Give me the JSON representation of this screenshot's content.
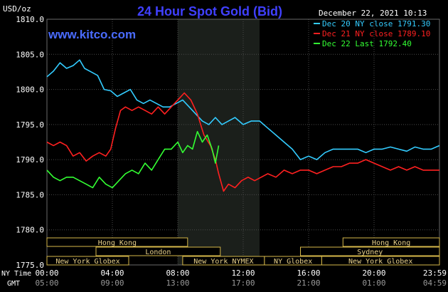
{
  "header": {
    "title": "24 Hour Spot Gold (Bid)",
    "y_unit": "USD/oz",
    "date": "December 22, 2021 10:13",
    "watermark": "www.kitco.com"
  },
  "legend": [
    {
      "label": "Dec 20 NY close 1791.30",
      "color": "#33ccff"
    },
    {
      "label": "Dec 21 NY close 1789.10",
      "color": "#ff2020"
    },
    {
      "label": "Dec 22 Last 1792.40",
      "color": "#33ff33"
    }
  ],
  "x_axis": {
    "row1_label": "NY Time",
    "row2_label": "GMT",
    "ny_ticks": [
      "00:00",
      "04:00",
      "08:00",
      "12:00",
      "16:00",
      "20:00",
      "23:59"
    ],
    "gmt_ticks": [
      "05:00",
      "09:00",
      "13:00",
      "17:00",
      "21:00",
      "01:00",
      "04:59"
    ]
  },
  "sessions": [
    {
      "label": "Hong Kong",
      "start": 0,
      "end": 8.6
    },
    {
      "label": "Hong Kong",
      "start": 18.1,
      "end": 24
    },
    {
      "label": "London",
      "start": 3.0,
      "end": 10.6
    },
    {
      "label": "Sydney",
      "start": 15.5,
      "end": 24
    },
    {
      "label": "New York Globex",
      "start": 0,
      "end": 5.0
    },
    {
      "label": "New York NYMEX",
      "start": 8.3,
      "end": 13.3
    },
    {
      "label": "NY Globex",
      "start": 13.3,
      "end": 16.8
    },
    {
      "label": "New York Globex",
      "start": 16.8,
      "end": 24
    }
  ],
  "chart_data": {
    "type": "line",
    "title": "24 Hour Spot Gold (Bid)",
    "ylabel": "USD/oz",
    "ylim": [
      1775,
      1810
    ],
    "xlim": [
      0,
      24
    ],
    "yticks": [
      1775,
      1780,
      1785,
      1790,
      1795,
      1800,
      1805,
      1810
    ],
    "grid": true,
    "legend_position": "top-right",
    "shaded_range": [
      8.0,
      13.0
    ],
    "series": [
      {
        "name": "Dec 20 NY close 1791.30",
        "color": "#33ccff",
        "points": [
          [
            0,
            1801.8
          ],
          [
            0.4,
            1802.6
          ],
          [
            0.8,
            1803.8
          ],
          [
            1.2,
            1803.0
          ],
          [
            1.6,
            1803.4
          ],
          [
            2.0,
            1804.2
          ],
          [
            2.3,
            1803.0
          ],
          [
            2.7,
            1802.5
          ],
          [
            3.1,
            1802.0
          ],
          [
            3.5,
            1800.0
          ],
          [
            3.9,
            1799.8
          ],
          [
            4.3,
            1799.0
          ],
          [
            4.7,
            1799.5
          ],
          [
            5.1,
            1800.0
          ],
          [
            5.5,
            1798.5
          ],
          [
            5.9,
            1798.0
          ],
          [
            6.3,
            1798.5
          ],
          [
            6.7,
            1798.0
          ],
          [
            7.1,
            1797.5
          ],
          [
            7.5,
            1797.5
          ],
          [
            7.9,
            1798.0
          ],
          [
            8.3,
            1798.5
          ],
          [
            8.7,
            1797.5
          ],
          [
            9.1,
            1796.5
          ],
          [
            9.5,
            1795.5
          ],
          [
            9.9,
            1795.0
          ],
          [
            10.3,
            1796.0
          ],
          [
            10.7,
            1795.0
          ],
          [
            11.1,
            1795.5
          ],
          [
            11.5,
            1796.0
          ],
          [
            12.0,
            1795.0
          ],
          [
            12.5,
            1795.5
          ],
          [
            13.0,
            1795.5
          ],
          [
            13.5,
            1794.5
          ],
          [
            14.0,
            1793.5
          ],
          [
            14.5,
            1792.5
          ],
          [
            15.0,
            1791.5
          ],
          [
            15.5,
            1790.0
          ],
          [
            16.0,
            1790.5
          ],
          [
            16.5,
            1790.0
          ],
          [
            17.0,
            1791.0
          ],
          [
            17.5,
            1791.5
          ],
          [
            18.0,
            1791.5
          ],
          [
            18.5,
            1791.5
          ],
          [
            19.0,
            1791.5
          ],
          [
            19.5,
            1791.0
          ],
          [
            20.0,
            1791.5
          ],
          [
            20.5,
            1791.5
          ],
          [
            21.0,
            1791.8
          ],
          [
            21.5,
            1791.5
          ],
          [
            22.0,
            1791.2
          ],
          [
            22.5,
            1791.8
          ],
          [
            23.0,
            1791.5
          ],
          [
            23.5,
            1791.5
          ],
          [
            24.0,
            1792.0
          ]
        ]
      },
      {
        "name": "Dec 21 NY close 1789.10",
        "color": "#ff2020",
        "points": [
          [
            0,
            1792.5
          ],
          [
            0.4,
            1792.0
          ],
          [
            0.8,
            1792.5
          ],
          [
            1.2,
            1792.0
          ],
          [
            1.6,
            1790.5
          ],
          [
            2.0,
            1791.0
          ],
          [
            2.4,
            1789.8
          ],
          [
            2.8,
            1790.5
          ],
          [
            3.2,
            1791.0
          ],
          [
            3.6,
            1790.5
          ],
          [
            3.9,
            1791.5
          ],
          [
            4.2,
            1794.5
          ],
          [
            4.5,
            1797.0
          ],
          [
            4.8,
            1797.5
          ],
          [
            5.2,
            1797.0
          ],
          [
            5.6,
            1797.5
          ],
          [
            6.0,
            1797.0
          ],
          [
            6.4,
            1796.5
          ],
          [
            6.8,
            1797.5
          ],
          [
            7.2,
            1796.5
          ],
          [
            7.6,
            1797.5
          ],
          [
            8.0,
            1798.5
          ],
          [
            8.4,
            1799.5
          ],
          [
            8.8,
            1798.5
          ],
          [
            9.2,
            1796.5
          ],
          [
            9.6,
            1793.5
          ],
          [
            10.0,
            1792.0
          ],
          [
            10.3,
            1790.0
          ],
          [
            10.5,
            1788.0
          ],
          [
            10.8,
            1785.5
          ],
          [
            11.1,
            1786.5
          ],
          [
            11.5,
            1786.0
          ],
          [
            11.9,
            1787.0
          ],
          [
            12.3,
            1787.5
          ],
          [
            12.7,
            1787.0
          ],
          [
            13.1,
            1787.5
          ],
          [
            13.5,
            1788.0
          ],
          [
            14.0,
            1787.5
          ],
          [
            14.5,
            1788.5
          ],
          [
            15.0,
            1788.0
          ],
          [
            15.5,
            1788.5
          ],
          [
            16.0,
            1788.5
          ],
          [
            16.5,
            1788.0
          ],
          [
            17.0,
            1788.5
          ],
          [
            17.5,
            1789.0
          ],
          [
            18.0,
            1789.0
          ],
          [
            18.5,
            1789.5
          ],
          [
            19.0,
            1789.5
          ],
          [
            19.5,
            1790.0
          ],
          [
            20.0,
            1789.5
          ],
          [
            20.5,
            1789.0
          ],
          [
            21.0,
            1788.5
          ],
          [
            21.5,
            1789.0
          ],
          [
            22.0,
            1788.5
          ],
          [
            22.5,
            1789.0
          ],
          [
            23.0,
            1788.5
          ],
          [
            23.5,
            1788.5
          ],
          [
            24.0,
            1788.5
          ]
        ]
      },
      {
        "name": "Dec 22 Last 1792.40",
        "color": "#33ff33",
        "points": [
          [
            0,
            1788.5
          ],
          [
            0.4,
            1787.5
          ],
          [
            0.8,
            1787.0
          ],
          [
            1.2,
            1787.5
          ],
          [
            1.6,
            1787.5
          ],
          [
            2.0,
            1787.0
          ],
          [
            2.4,
            1786.5
          ],
          [
            2.8,
            1786.0
          ],
          [
            3.2,
            1787.5
          ],
          [
            3.6,
            1786.5
          ],
          [
            4.0,
            1786.0
          ],
          [
            4.4,
            1787.0
          ],
          [
            4.8,
            1788.0
          ],
          [
            5.2,
            1788.5
          ],
          [
            5.6,
            1788.0
          ],
          [
            6.0,
            1789.5
          ],
          [
            6.4,
            1788.5
          ],
          [
            6.8,
            1790.0
          ],
          [
            7.2,
            1791.5
          ],
          [
            7.6,
            1791.5
          ],
          [
            8.0,
            1792.5
          ],
          [
            8.3,
            1791.0
          ],
          [
            8.6,
            1792.0
          ],
          [
            8.9,
            1791.5
          ],
          [
            9.2,
            1794.0
          ],
          [
            9.5,
            1792.5
          ],
          [
            9.8,
            1793.5
          ],
          [
            10.1,
            1791.5
          ],
          [
            10.3,
            1789.5
          ],
          [
            10.5,
            1792.0
          ]
        ]
      }
    ]
  }
}
